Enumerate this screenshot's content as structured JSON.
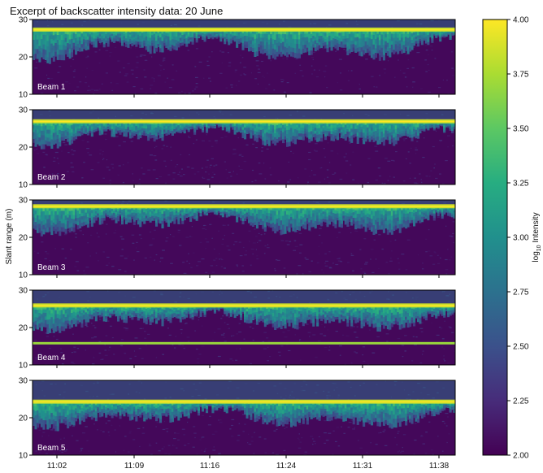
{
  "chart_data": {
    "type": "heatmap",
    "title": "Excerpt of backscatter intensity data: 20 June",
    "ylabel": "Slant range (m)",
    "colorbar": {
      "label_main": "log",
      "label_sub": "10",
      "label_rest": " Intensity",
      "range": [
        2.0,
        4.0
      ],
      "ticks": [
        "2.00",
        "2.25",
        "2.50",
        "2.75",
        "3.00",
        "3.25",
        "3.50",
        "3.75",
        "4.00"
      ],
      "colormap": [
        "#440154",
        "#472c7a",
        "#3b518b",
        "#2c718e",
        "#21908d",
        "#27ad81",
        "#5cc863",
        "#aadc32",
        "#fde725"
      ]
    },
    "x_ticks": [
      "11:02",
      "11:09",
      "11:16",
      "11:24",
      "11:31",
      "11:38"
    ],
    "y_ticks": [
      "30",
      "20",
      "10"
    ],
    "ylim": [
      10,
      30
    ],
    "panels": [
      {
        "label": "Beam 1",
        "surface_m": 27.2,
        "base_m": 20.0,
        "extra_band_m": null
      },
      {
        "label": "Beam 2",
        "surface_m": 26.8,
        "base_m": 21.5,
        "extra_band_m": null
      },
      {
        "label": "Beam 3",
        "surface_m": 28.2,
        "base_m": 22.0,
        "extra_band_m": null
      },
      {
        "label": "Beam 4",
        "surface_m": 25.8,
        "base_m": 20.5,
        "extra_band_m": 15.8
      },
      {
        "label": "Beam 5",
        "surface_m": 24.2,
        "base_m": 18.5,
        "extra_band_m": null
      }
    ]
  }
}
